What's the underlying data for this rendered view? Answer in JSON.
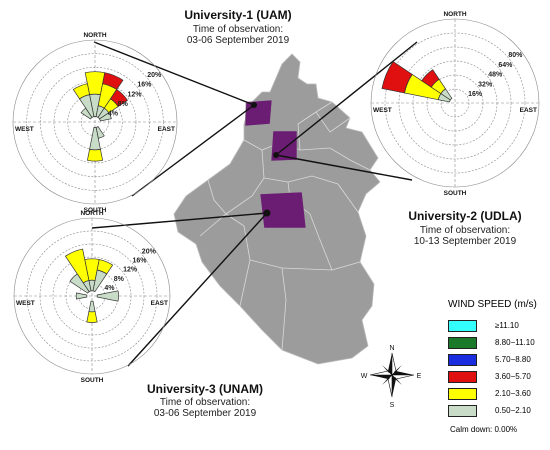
{
  "stations": [
    {
      "title": "University-1 (UAM)",
      "time_label": "Time of observation:",
      "date": "03-06 September 2019",
      "directions": {
        "n": "NORTH",
        "s": "SOUTH",
        "e": "EAST",
        "w": "WEST"
      },
      "rings": [
        "4%",
        "8%",
        "12%",
        "16%",
        "20%"
      ],
      "petals": [
        {
          "dir": "N",
          "bands": [
            2,
            2
          ]
        },
        {
          "dir": "NNE",
          "bands": [
            1,
            2,
            1
          ]
        },
        {
          "dir": "NE",
          "bands": [
            1,
            1,
            1
          ]
        },
        {
          "dir": "ENE",
          "bands": [
            1
          ]
        },
        {
          "dir": "SSE",
          "bands": [
            1
          ]
        },
        {
          "dir": "S",
          "bands": [
            2,
            1
          ]
        },
        {
          "dir": "NW",
          "bands": [
            1
          ]
        },
        {
          "dir": "NNW",
          "bands": [
            2,
            1
          ]
        }
      ]
    },
    {
      "title": "University-2 (UDLA)",
      "time_label": "Time of observation:",
      "date": "10-13 September 2019",
      "directions": {
        "n": "NORTH",
        "s": "SOUTH",
        "e": "EAST",
        "w": "WEST"
      },
      "rings": [
        "16%",
        "32%",
        "48%",
        "64%",
        "80%"
      ],
      "petals": [
        {
          "dir": "WNW",
          "bands": [
            1,
            3,
            2
          ]
        },
        {
          "dir": "NW",
          "bands": [
            1,
            1,
            1
          ]
        }
      ]
    },
    {
      "title": "University-3 (UNAM)",
      "time_label": "Time of observation:",
      "date": "03-06 September 2019",
      "directions": {
        "n": "NORTH",
        "s": "SOUTH",
        "e": "EAST",
        "w": "WEST"
      },
      "rings": [
        "4%",
        "8%",
        "12%",
        "16%",
        "20%"
      ],
      "petals": [
        {
          "dir": "N",
          "bands": [
            1,
            2
          ]
        },
        {
          "dir": "NNE",
          "bands": [
            2,
            1
          ]
        },
        {
          "dir": "NNW",
          "bands": [
            1,
            3
          ]
        },
        {
          "dir": "NW",
          "bands": [
            2
          ]
        },
        {
          "dir": "E",
          "bands": [
            2
          ]
        },
        {
          "dir": "W",
          "bands": [
            1
          ]
        },
        {
          "dir": "S",
          "bands": [
            1,
            1
          ]
        }
      ]
    }
  ],
  "legend": {
    "title": "WIND SPEED (m/s)",
    "items": [
      {
        "label": "≥11.10",
        "color": "#33ffff"
      },
      {
        "label": "8.80−11.10",
        "color": "#1a7a2a"
      },
      {
        "label": "5.70−8.80",
        "color": "#1a2ee0"
      },
      {
        "label": "3.60−5.70",
        "color": "#e01010"
      },
      {
        "label": "2.10−3.60",
        "color": "#ffff00"
      },
      {
        "label": "0.50−2.10",
        "color": "#c8dcc8"
      }
    ],
    "calm": "Calm down: 0.00%"
  },
  "compass": {
    "n": "N",
    "s": "S",
    "e": "E",
    "w": "W"
  },
  "colors": {
    "highlight": "#6b1d73",
    "map": "#9c9c9c"
  }
}
